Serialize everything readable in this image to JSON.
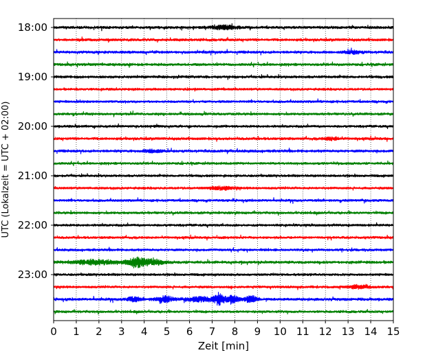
{
  "chart_data": {
    "type": "line",
    "title": "",
    "xlabel": "Zeit  [min]",
    "ylabel": "UTC (Lokalzeit = UTC + 02:00)",
    "xlim": [
      0,
      15
    ],
    "x_ticks": [
      "0",
      "1",
      "2",
      "3",
      "4",
      "5",
      "6",
      "7",
      "8",
      "9",
      "10",
      "11",
      "12",
      "13",
      "14",
      "15"
    ],
    "y_ticks": [
      "18:00",
      "19:00",
      "20:00",
      "21:00",
      "22:00",
      "23:00"
    ],
    "grid": "vertical dotted at each minute",
    "trace_interval_minutes": 15,
    "start_time": "18:00",
    "trace_count": 24,
    "colors": [
      "#000000",
      "#ff0000",
      "#0000ff",
      "#008000"
    ],
    "traces": [
      {
        "start": "18:00",
        "color_index": 0,
        "amplitude": 2.5,
        "events": [
          {
            "t": 7.5,
            "a": 2.5,
            "w": 0.6
          }
        ]
      },
      {
        "start": "18:15",
        "color_index": 1,
        "amplitude": 2.5,
        "events": []
      },
      {
        "start": "18:30",
        "color_index": 2,
        "amplitude": 2.5,
        "events": [
          {
            "t": 13.2,
            "a": 2,
            "w": 0.4
          }
        ]
      },
      {
        "start": "18:45",
        "color_index": 3,
        "amplitude": 2.5,
        "events": []
      },
      {
        "start": "19:00",
        "color_index": 0,
        "amplitude": 2.5,
        "events": []
      },
      {
        "start": "19:15",
        "color_index": 1,
        "amplitude": 2.3,
        "events": []
      },
      {
        "start": "19:30",
        "color_index": 2,
        "amplitude": 2.3,
        "events": []
      },
      {
        "start": "19:45",
        "color_index": 3,
        "amplitude": 2.3,
        "events": []
      },
      {
        "start": "20:00",
        "color_index": 0,
        "amplitude": 2.3,
        "events": []
      },
      {
        "start": "20:15",
        "color_index": 1,
        "amplitude": 2.5,
        "events": [
          {
            "t": 12.3,
            "a": 2,
            "w": 0.3
          }
        ]
      },
      {
        "start": "20:30",
        "color_index": 2,
        "amplitude": 2.5,
        "events": [
          {
            "t": 4.4,
            "a": 2,
            "w": 0.4
          }
        ]
      },
      {
        "start": "20:45",
        "color_index": 3,
        "amplitude": 2.3,
        "events": []
      },
      {
        "start": "21:00",
        "color_index": 0,
        "amplitude": 2.3,
        "events": []
      },
      {
        "start": "21:15",
        "color_index": 1,
        "amplitude": 2.3,
        "events": [
          {
            "t": 7.4,
            "a": 2,
            "w": 0.6
          }
        ]
      },
      {
        "start": "21:30",
        "color_index": 2,
        "amplitude": 2.3,
        "events": []
      },
      {
        "start": "21:45",
        "color_index": 3,
        "amplitude": 2.3,
        "events": []
      },
      {
        "start": "22:00",
        "color_index": 0,
        "amplitude": 2.3,
        "events": []
      },
      {
        "start": "22:15",
        "color_index": 1,
        "amplitude": 2.3,
        "events": []
      },
      {
        "start": "22:30",
        "color_index": 2,
        "amplitude": 2.3,
        "events": []
      },
      {
        "start": "22:45",
        "color_index": 3,
        "amplitude": 2.6,
        "events": [
          {
            "t": 1.8,
            "a": 3,
            "w": 1.0
          },
          {
            "t": 3.6,
            "a": 6,
            "w": 0.35
          },
          {
            "t": 4.3,
            "a": 4,
            "w": 0.5
          }
        ]
      },
      {
        "start": "23:00",
        "color_index": 0,
        "amplitude": 2.3,
        "events": []
      },
      {
        "start": "23:15",
        "color_index": 1,
        "amplitude": 2.3,
        "events": [
          {
            "t": 13.5,
            "a": 2,
            "w": 0.5
          }
        ]
      },
      {
        "start": "23:30",
        "color_index": 2,
        "amplitude": 2.5,
        "events": [
          {
            "t": 3.5,
            "a": 3,
            "w": 0.3
          },
          {
            "t": 4.9,
            "a": 4,
            "w": 0.4
          },
          {
            "t": 6.5,
            "a": 3,
            "w": 0.6
          },
          {
            "t": 7.3,
            "a": 8,
            "w": 0.2
          },
          {
            "t": 7.9,
            "a": 5,
            "w": 0.3
          },
          {
            "t": 8.7,
            "a": 5,
            "w": 0.25
          }
        ]
      },
      {
        "start": "23:45",
        "color_index": 3,
        "amplitude": 2.3,
        "events": []
      }
    ]
  }
}
